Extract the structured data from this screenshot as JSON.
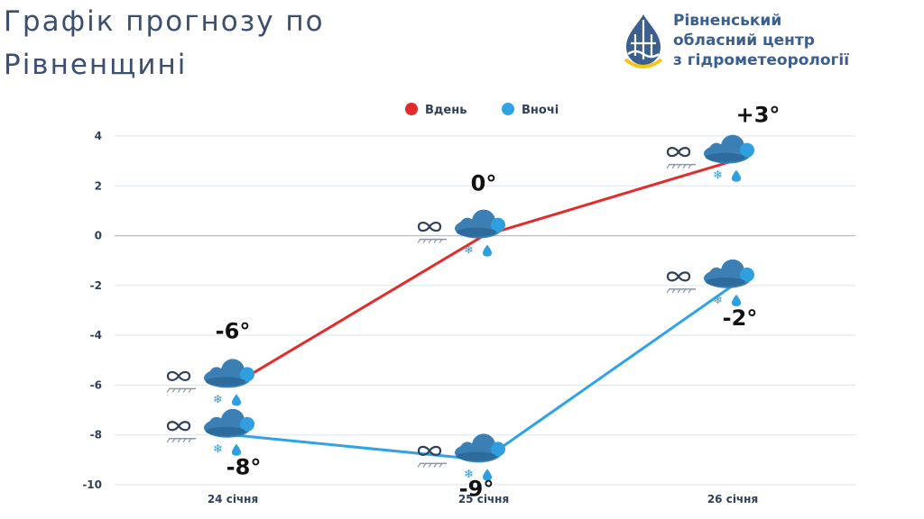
{
  "header": {
    "title_line1": "Графік прогнозу по",
    "title_line2": "Рівненщині"
  },
  "organization": {
    "line1": "Рівненський",
    "line2": "обласний центр",
    "line3": "з гідрометеорології",
    "logo_colors": {
      "blue": "#3b5f8f",
      "yellow": "#f5c518"
    }
  },
  "weather_icon": "cloud-sleet-haze-icon",
  "chart_data": {
    "type": "line",
    "categories": [
      "24 січня",
      "25 січня",
      "26 січня"
    ],
    "series": [
      {
        "name": "Вдень",
        "color": "#e32b2b",
        "values": [
          -6,
          0,
          3
        ],
        "labels": [
          "-6°",
          "0°",
          "+3°"
        ]
      },
      {
        "name": "Вночі",
        "color": "#2fa3e6",
        "values": [
          -8,
          -9,
          -2
        ],
        "labels": [
          "-8°",
          "-9°",
          "-2°"
        ]
      }
    ],
    "ylim": [
      -10,
      4
    ],
    "yticks": [
      "4",
      "2",
      "0",
      "-2",
      "-4",
      "-6",
      "-8",
      "-10"
    ],
    "legend_position": "top-center",
    "grid": true
  }
}
